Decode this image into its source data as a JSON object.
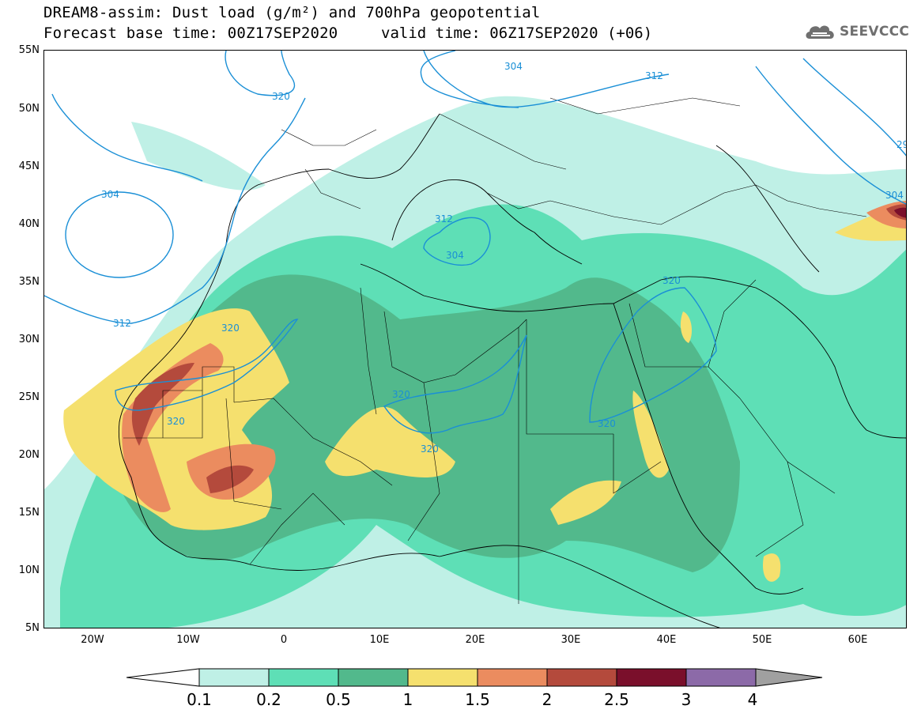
{
  "title": {
    "line1": "DREAM8-assim: Dust load (g/m²) and 700hPa geopotential",
    "line2": "Forecast base time: 00Z17SEP2020",
    "valid_time": "valid time: 06Z17SEP2020 (+06)"
  },
  "logo": {
    "text": "SEEVCCC",
    "icon": "cloud-icon"
  },
  "axes": {
    "lat_labels": [
      "55N",
      "50N",
      "45N",
      "40N",
      "35N",
      "30N",
      "25N",
      "20N",
      "15N",
      "10N",
      "5N"
    ],
    "lon_labels": [
      "20W",
      "10W",
      "0",
      "10E",
      "20E",
      "30E",
      "40E",
      "50E",
      "60E"
    ]
  },
  "contours": {
    "color": "#1a8fd6",
    "labels": [
      "304",
      "320",
      "312",
      "304",
      "312",
      "304",
      "320",
      "320",
      "320",
      "320",
      "320",
      "320",
      "304",
      "312",
      "29"
    ]
  },
  "colorbar": {
    "labels": [
      "0.1",
      "0.2",
      "0.5",
      "1",
      "1.5",
      "2",
      "2.5",
      "3",
      "4"
    ],
    "colors": [
      "#ffffff",
      "#bff0e6",
      "#5edfb6",
      "#52b98c",
      "#f5e06e",
      "#eb8c5f",
      "#b44a3c",
      "#7a0f2b",
      "#8c6aa8",
      "#a0a0a0"
    ]
  }
}
